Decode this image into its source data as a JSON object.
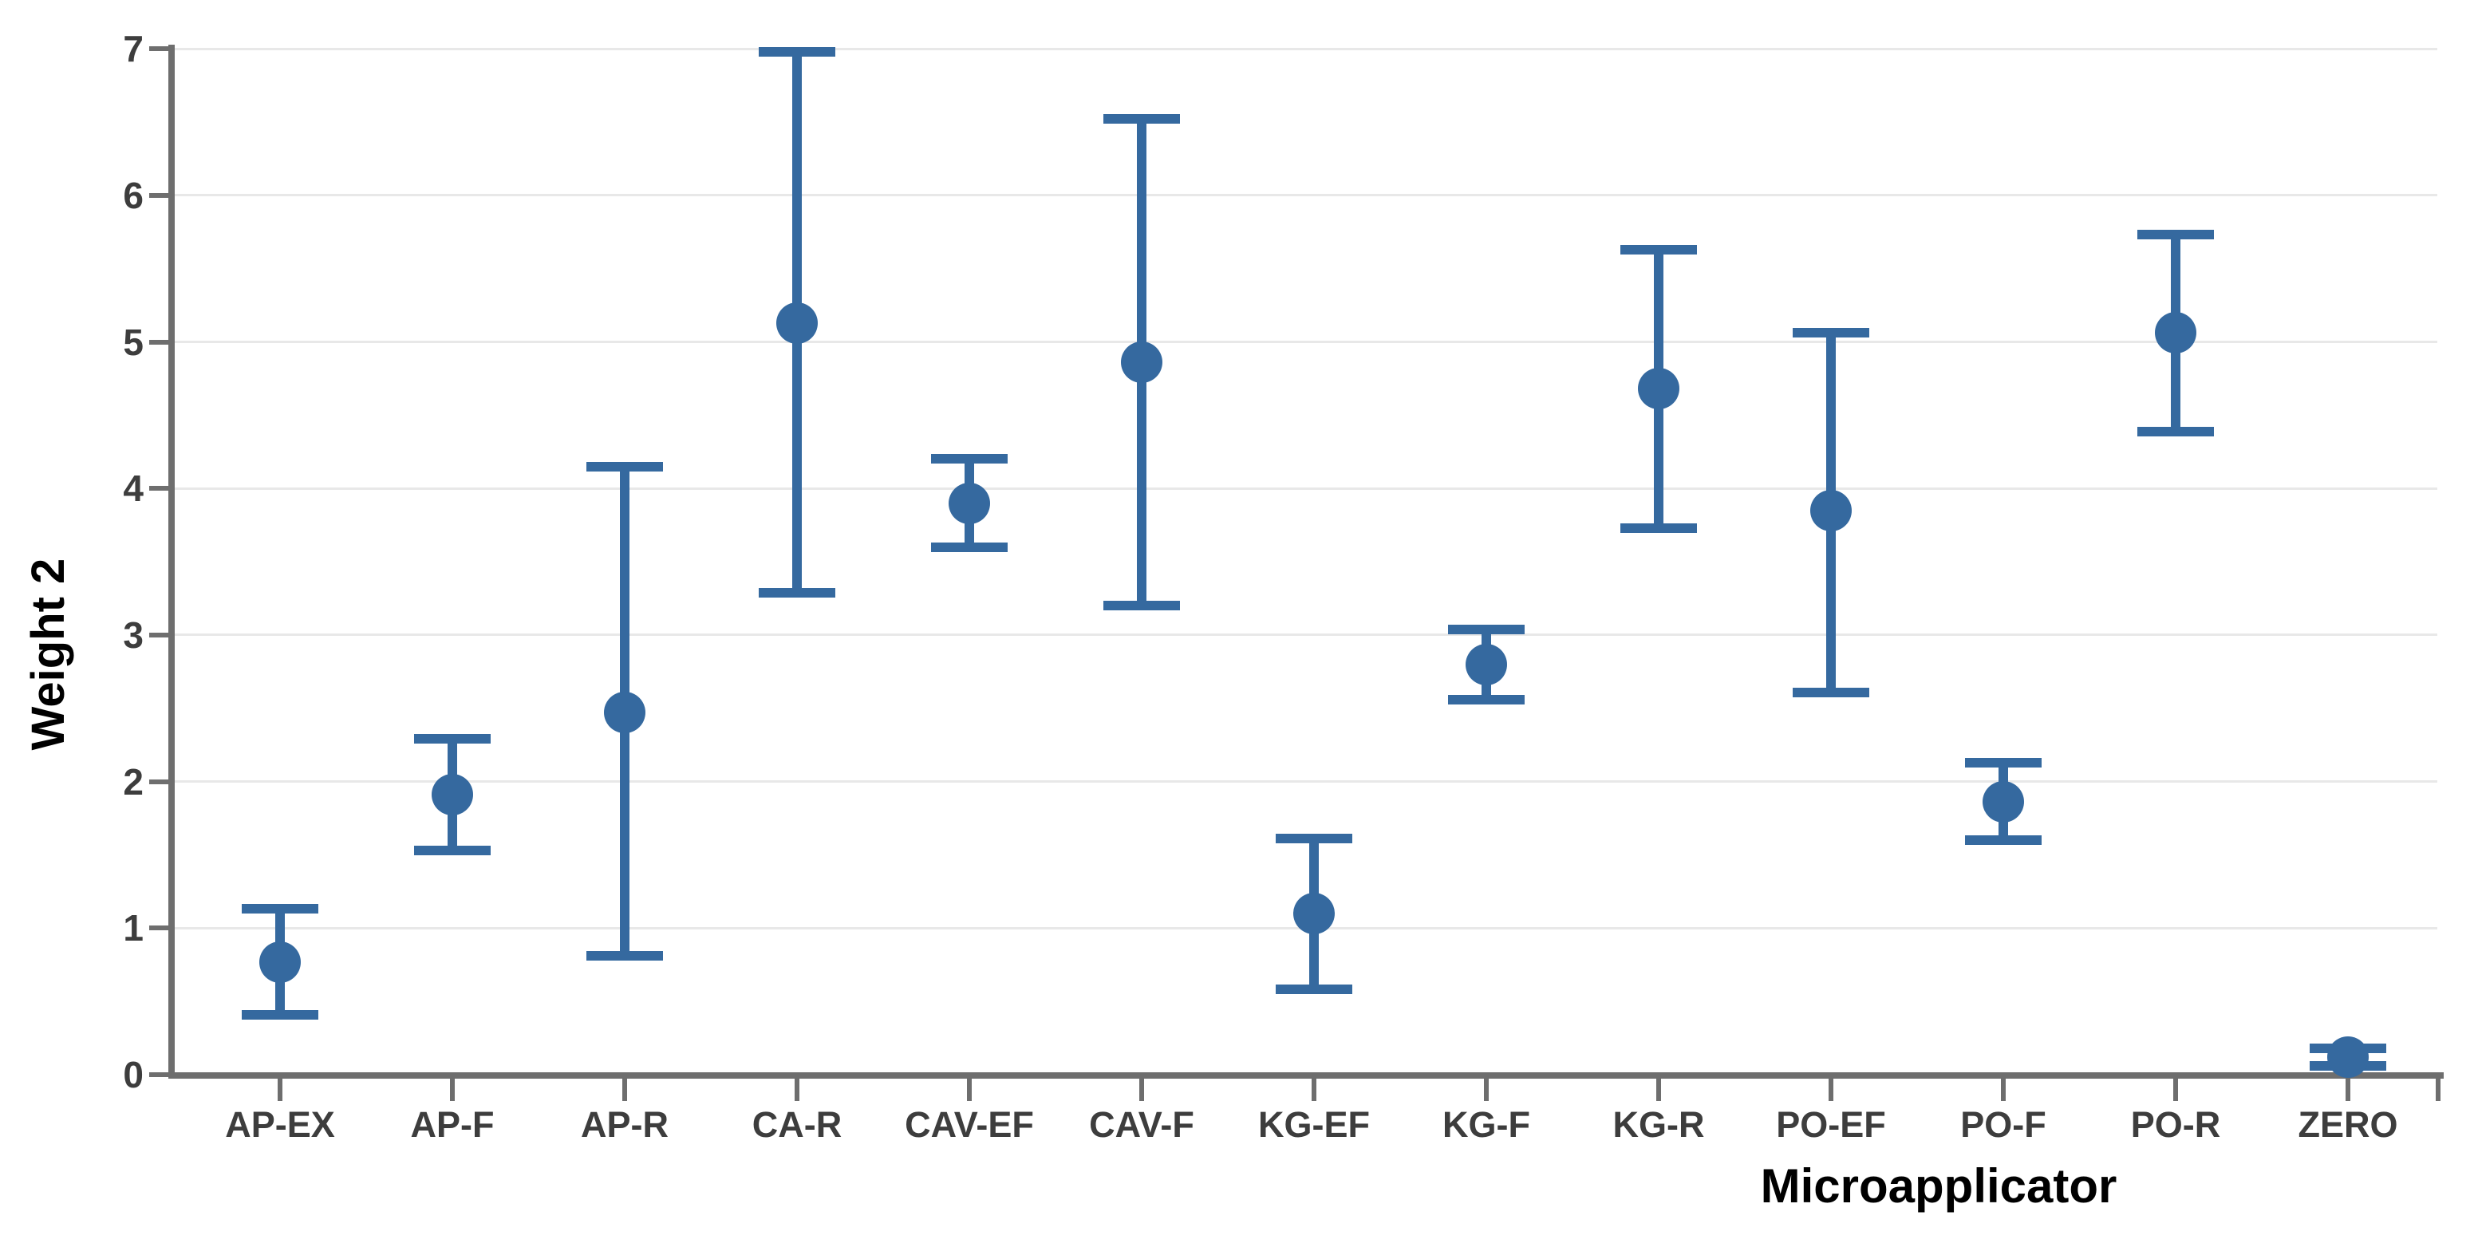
{
  "chart_data": {
    "type": "scatter",
    "subtype": "mean-with-error-bars",
    "title": "",
    "xlabel": "Microapplicator",
    "ylabel": "Weight 2",
    "categories": [
      "AP-EX",
      "AP-F",
      "AP-R",
      "CA-R",
      "CAV-EF",
      "CAV-F",
      "KG-EF",
      "KG-F",
      "KG-R",
      "PO-EF",
      "PO-F",
      "PO-R",
      "ZERO"
    ],
    "series": [
      {
        "name": "Weight 2",
        "means": [
          0.77,
          1.91,
          2.47,
          5.13,
          3.9,
          4.86,
          1.1,
          2.8,
          4.68,
          3.85,
          1.86,
          5.06,
          0.12
        ],
        "error_low": [
          0.41,
          1.53,
          0.81,
          3.29,
          3.6,
          3.2,
          0.58,
          2.56,
          3.73,
          2.61,
          1.6,
          4.39,
          0.06
        ],
        "error_high": [
          1.13,
          2.29,
          4.15,
          6.98,
          4.2,
          6.52,
          1.61,
          3.04,
          5.63,
          5.06,
          2.13,
          5.73,
          0.18
        ]
      }
    ],
    "ylim": [
      0,
      7
    ],
    "yticks": [
      0,
      1,
      2,
      3,
      4,
      5,
      6,
      7
    ],
    "grid": "horizontal",
    "legend": "none",
    "colors": {
      "point": "#35699f",
      "error_bar": "#35699f",
      "axis": "#6e6e6e",
      "gridline": "#e8e8e8",
      "tick_label": "#3d3d3d",
      "axis_title": "#000000"
    }
  }
}
